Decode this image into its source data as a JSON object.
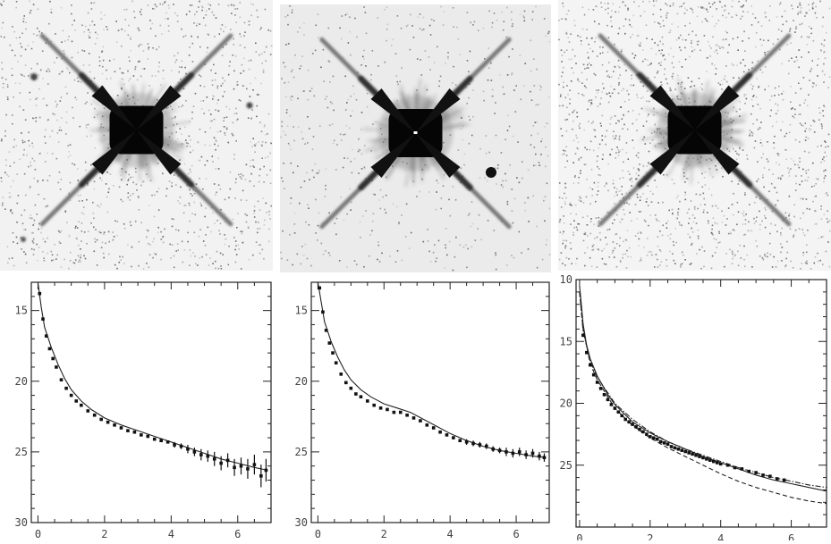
{
  "images": [
    {
      "name": "star-image-1",
      "speckle_density": 0.12
    },
    {
      "name": "star-image-2",
      "speckle_density": 0.06
    },
    {
      "name": "star-image-3",
      "speckle_density": 0.16
    }
  ],
  "chart_data": [
    {
      "type": "scatter",
      "title": "",
      "xlabel": "",
      "ylabel": "",
      "xlim": [
        -0.2,
        7.0
      ],
      "ylim": [
        30,
        13
      ],
      "y_reversed": true,
      "grid": false,
      "x_ticks": [
        0,
        2,
        4,
        6
      ],
      "y_ticks": [
        15,
        20,
        25,
        30
      ],
      "x_tick_labels": [
        "0",
        "2",
        "4",
        "6"
      ],
      "y_tick_labels": [
        "15",
        "20",
        "25",
        "30"
      ],
      "series": [
        {
          "style": "model-line",
          "x": [
            0.0,
            0.1,
            0.2,
            0.4,
            0.6,
            0.8,
            1.0,
            1.3,
            1.6,
            2.0,
            2.5,
            3.0,
            3.5,
            4.0,
            4.5,
            5.0,
            5.5,
            6.0,
            6.5,
            6.9
          ],
          "y": [
            13.0,
            14.8,
            16.2,
            17.6,
            18.8,
            19.8,
            20.6,
            21.4,
            22.0,
            22.6,
            23.1,
            23.5,
            23.9,
            24.3,
            24.7,
            25.1,
            25.5,
            25.8,
            26.1,
            26.3
          ]
        },
        {
          "style": "points",
          "x": [
            0.05,
            0.15,
            0.25,
            0.35,
            0.45,
            0.55,
            0.7,
            0.85,
            1.0,
            1.15,
            1.3,
            1.5,
            1.7,
            1.9,
            2.1,
            2.3,
            2.5,
            2.7,
            2.9,
            3.1,
            3.3,
            3.5,
            3.7,
            3.9,
            4.1,
            4.3,
            4.5,
            4.7,
            4.9,
            5.1,
            5.3,
            5.5,
            5.7,
            5.9,
            6.1,
            6.3,
            6.5,
            6.7,
            6.85
          ],
          "y": [
            13.8,
            15.6,
            16.8,
            17.7,
            18.4,
            19.0,
            19.9,
            20.5,
            21.0,
            21.4,
            21.7,
            22.1,
            22.4,
            22.7,
            22.9,
            23.1,
            23.3,
            23.5,
            23.6,
            23.8,
            23.9,
            24.1,
            24.2,
            24.3,
            24.5,
            24.6,
            24.8,
            25.0,
            25.2,
            25.3,
            25.5,
            25.8,
            25.6,
            26.1,
            26.0,
            26.2,
            25.9,
            26.7,
            26.3
          ],
          "err": [
            0,
            0,
            0,
            0,
            0,
            0,
            0,
            0,
            0,
            0,
            0,
            0,
            0,
            0,
            0,
            0,
            0,
            0,
            0,
            0,
            0,
            0,
            0,
            0.1,
            0.2,
            0.2,
            0.3,
            0.3,
            0.4,
            0.4,
            0.5,
            0.5,
            0.5,
            0.6,
            0.6,
            0.7,
            0.7,
            0.8,
            0.8
          ]
        }
      ]
    },
    {
      "type": "scatter",
      "title": "",
      "xlabel": "",
      "ylabel": "",
      "xlim": [
        -0.2,
        7.0
      ],
      "ylim": [
        30,
        13
      ],
      "y_reversed": true,
      "grid": false,
      "x_ticks": [
        0,
        2,
        4,
        6
      ],
      "y_ticks": [
        15,
        20,
        25,
        30
      ],
      "x_tick_labels": [
        "0",
        "2",
        "4",
        "6"
      ],
      "y_tick_labels": [
        "15",
        "20",
        "25",
        "30"
      ],
      "series": [
        {
          "style": "model-line",
          "x": [
            0.0,
            0.1,
            0.2,
            0.4,
            0.6,
            0.8,
            1.0,
            1.3,
            1.6,
            2.0,
            2.4,
            2.8,
            3.2,
            3.6,
            4.0,
            4.5,
            5.0,
            5.5,
            6.0,
            6.5,
            6.9
          ],
          "y": [
            13.0,
            14.4,
            15.8,
            17.2,
            18.3,
            19.2,
            19.9,
            20.6,
            21.1,
            21.6,
            21.9,
            22.2,
            22.7,
            23.2,
            23.7,
            24.2,
            24.6,
            24.9,
            25.1,
            25.3,
            25.4
          ]
        },
        {
          "style": "points",
          "x": [
            0.05,
            0.15,
            0.25,
            0.35,
            0.45,
            0.55,
            0.7,
            0.85,
            1.0,
            1.15,
            1.3,
            1.5,
            1.7,
            1.9,
            2.1,
            2.3,
            2.5,
            2.7,
            2.9,
            3.1,
            3.3,
            3.5,
            3.7,
            3.9,
            4.1,
            4.3,
            4.5,
            4.7,
            4.9,
            5.1,
            5.3,
            5.5,
            5.7,
            5.9,
            6.1,
            6.3,
            6.5,
            6.7,
            6.85
          ],
          "y": [
            13.4,
            15.1,
            16.4,
            17.3,
            18.0,
            18.7,
            19.5,
            20.1,
            20.5,
            20.9,
            21.1,
            21.4,
            21.7,
            21.9,
            22.0,
            22.2,
            22.2,
            22.4,
            22.6,
            22.8,
            23.1,
            23.3,
            23.6,
            23.8,
            24.0,
            24.2,
            24.3,
            24.4,
            24.5,
            24.6,
            24.8,
            24.9,
            25.0,
            25.1,
            25.0,
            25.2,
            25.1,
            25.3,
            25.4
          ],
          "err": [
            0,
            0,
            0,
            0,
            0,
            0,
            0,
            0,
            0,
            0,
            0,
            0,
            0,
            0,
            0,
            0,
            0,
            0,
            0,
            0,
            0,
            0,
            0,
            0.1,
            0.1,
            0.1,
            0.2,
            0.2,
            0.2,
            0.2,
            0.2,
            0.2,
            0.3,
            0.3,
            0.3,
            0.3,
            0.3,
            0.3,
            0.3
          ]
        }
      ]
    },
    {
      "type": "scatter",
      "title": "",
      "xlabel": "",
      "ylabel": "",
      "xlim": [
        -0.1,
        7.0
      ],
      "ylim": [
        30,
        10
      ],
      "y_reversed": true,
      "grid": false,
      "x_ticks": [
        0,
        2,
        4,
        6
      ],
      "y_ticks": [
        10,
        15,
        20,
        25
      ],
      "x_tick_labels": [
        "0",
        "2",
        "4",
        "6"
      ],
      "y_tick_labels": [
        "10",
        "15",
        "20",
        "25"
      ],
      "series": [
        {
          "style": "model-line",
          "x": [
            0.0,
            0.05,
            0.1,
            0.2,
            0.3,
            0.5,
            0.8,
            1.0,
            1.5,
            2.0,
            2.5,
            3.0,
            3.5,
            4.0,
            4.5,
            5.0,
            5.5,
            6.0,
            6.5,
            7.0
          ],
          "y": [
            10.5,
            12.0,
            13.6,
            15.3,
            16.4,
            17.8,
            19.3,
            20.1,
            21.5,
            22.4,
            23.1,
            23.7,
            24.3,
            24.8,
            25.3,
            25.8,
            26.2,
            26.5,
            26.8,
            27.1
          ]
        },
        {
          "style": "dash-line",
          "x": [
            0.0,
            0.1,
            0.3,
            0.5,
            1.0,
            1.5,
            2.0,
            2.5,
            3.0,
            3.5,
            4.0,
            4.5,
            5.0,
            5.5,
            6.0,
            6.5,
            7.0
          ],
          "y": [
            11.0,
            14.0,
            16.8,
            18.1,
            20.4,
            21.8,
            22.8,
            23.6,
            24.3,
            25.0,
            25.7,
            26.3,
            26.8,
            27.2,
            27.6,
            27.9,
            28.1
          ]
        },
        {
          "style": "dotdash-line",
          "x": [
            0.0,
            0.1,
            0.3,
            0.5,
            1.0,
            1.5,
            2.0,
            2.5,
            3.0,
            3.5,
            4.0,
            4.5,
            5.0,
            5.5,
            6.0,
            6.5,
            7.0
          ],
          "y": [
            11.0,
            14.2,
            16.6,
            17.9,
            20.0,
            21.3,
            22.3,
            23.1,
            23.7,
            24.2,
            24.7,
            25.2,
            25.6,
            26.0,
            26.3,
            26.6,
            26.8
          ]
        },
        {
          "style": "points",
          "x": [
            0.1,
            0.2,
            0.3,
            0.4,
            0.5,
            0.6,
            0.7,
            0.8,
            0.9,
            1.0,
            1.1,
            1.2,
            1.3,
            1.4,
            1.5,
            1.6,
            1.7,
            1.8,
            1.9,
            2.0,
            2.1,
            2.2,
            2.3,
            2.4,
            2.5,
            2.6,
            2.7,
            2.8,
            2.9,
            3.0,
            3.1,
            3.2,
            3.3,
            3.4,
            3.5,
            3.6,
            3.7,
            3.8,
            3.9,
            4.0,
            4.2,
            4.4,
            4.6,
            4.8,
            5.0,
            5.2,
            5.4,
            5.6,
            5.8
          ],
          "y": [
            14.5,
            15.9,
            16.9,
            17.7,
            18.3,
            18.8,
            19.3,
            19.7,
            20.1,
            20.4,
            20.7,
            21.0,
            21.3,
            21.5,
            21.7,
            21.9,
            22.1,
            22.3,
            22.5,
            22.7,
            22.8,
            22.9,
            23.1,
            23.2,
            23.3,
            23.5,
            23.6,
            23.7,
            23.8,
            23.9,
            24.0,
            24.1,
            24.2,
            24.3,
            24.4,
            24.5,
            24.6,
            24.7,
            24.8,
            24.9,
            25.0,
            25.2,
            25.3,
            25.5,
            25.6,
            25.8,
            25.9,
            26.1,
            26.2
          ],
          "err": [
            0,
            0,
            0,
            0,
            0,
            0,
            0,
            0,
            0,
            0,
            0,
            0,
            0,
            0,
            0,
            0,
            0,
            0,
            0,
            0,
            0,
            0,
            0,
            0,
            0,
            0,
            0,
            0,
            0,
            0,
            0,
            0,
            0,
            0,
            0,
            0,
            0,
            0,
            0,
            0,
            0,
            0,
            0,
            0,
            0,
            0,
            0,
            0,
            0
          ]
        }
      ]
    }
  ]
}
